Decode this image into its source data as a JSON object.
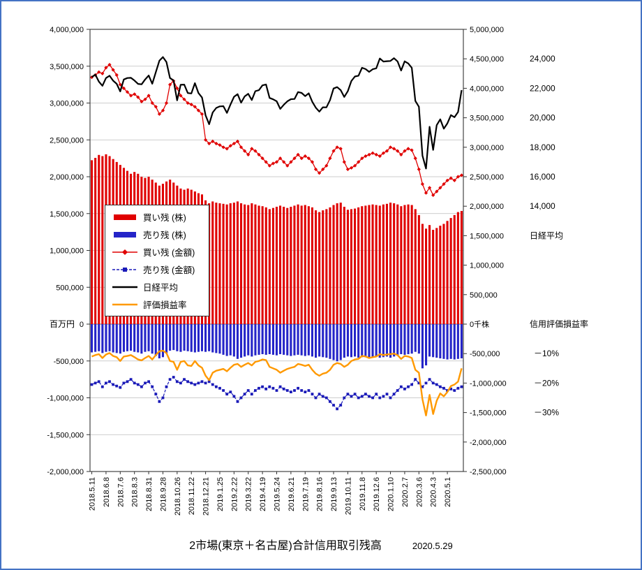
{
  "title": {
    "text": "2市場(東京＋名古屋)合計信用取引残高",
    "date": "2020.5.29"
  },
  "chart_data": {
    "type": "mixed (bar + line, dual axis)",
    "axes": {
      "left": {
        "unit_label": "百万円",
        "min": -2000000,
        "max": 4000000,
        "tick": 500000
      },
      "right": {
        "zero_label": "0千株",
        "min": -2500000,
        "max": 5000000,
        "tick": 500000
      },
      "nikkei": {
        "label": "日経平均",
        "tick_values": [
          24000,
          22000,
          20000,
          18000,
          16000,
          14000
        ]
      },
      "ratio": {
        "label": "信用評価損益率",
        "tick_values": [
          -10,
          -20,
          -30
        ],
        "tick_labels": [
          "－10%",
          "－20%",
          "－30%"
        ]
      }
    },
    "x_tick_labels": [
      "2018.5.11",
      "2018.6.8",
      "2018.7.6",
      "2018.8.3",
      "2018.8.31",
      "2018.9.28",
      "2018.10.26",
      "2018.11.22",
      "2018.12.21",
      "2019.1.25",
      "2019.2.22",
      "2019.3.22",
      "2019.4.19",
      "2019.5.24",
      "2019.6.21",
      "2019.7.19",
      "2019.8.16",
      "2019.9.13",
      "2019.10.11",
      "2019.11.8",
      "2019.12.6",
      "2020.1.10",
      "2020.2.7",
      "2020.3.6",
      "2020.4.3",
      "2020.5.1"
    ],
    "dates": [
      "2018.5.11",
      "2018.5.18",
      "2018.5.25",
      "2018.6.1",
      "2018.6.8",
      "2018.6.15",
      "2018.6.22",
      "2018.6.29",
      "2018.7.6",
      "2018.7.13",
      "2018.7.20",
      "2018.7.27",
      "2018.8.3",
      "2018.8.10",
      "2018.8.17",
      "2018.8.24",
      "2018.8.31",
      "2018.9.7",
      "2018.9.14",
      "2018.9.21",
      "2018.9.28",
      "2018.10.5",
      "2018.10.12",
      "2018.10.19",
      "2018.10.26",
      "2018.11.2",
      "2018.11.9",
      "2018.11.16",
      "2018.11.22",
      "2018.11.30",
      "2018.12.7",
      "2018.12.14",
      "2018.12.21",
      "2019.1.4",
      "2019.1.11",
      "2019.1.18",
      "2019.1.25",
      "2019.2.1",
      "2019.2.8",
      "2019.2.15",
      "2019.2.22",
      "2019.3.1",
      "2019.3.8",
      "2019.3.15",
      "2019.3.22",
      "2019.3.29",
      "2019.4.5",
      "2019.4.12",
      "2019.4.19",
      "2019.4.26",
      "2019.5.10",
      "2019.5.17",
      "2019.5.24",
      "2019.5.31",
      "2019.6.7",
      "2019.6.14",
      "2019.6.21",
      "2019.6.28",
      "2019.7.5",
      "2019.7.12",
      "2019.7.19",
      "2019.7.26",
      "2019.8.2",
      "2019.8.9",
      "2019.8.16",
      "2019.8.23",
      "2019.8.30",
      "2019.9.6",
      "2019.9.13",
      "2019.9.20",
      "2019.9.27",
      "2019.10.4",
      "2019.10.11",
      "2019.10.18",
      "2019.10.25",
      "2019.11.1",
      "2019.11.8",
      "2019.11.15",
      "2019.11.22",
      "2019.11.29",
      "2019.12.6",
      "2019.12.13",
      "2019.12.20",
      "2019.12.27",
      "2020.1.10",
      "2020.1.17",
      "2020.1.24",
      "2020.1.31",
      "2020.2.7",
      "2020.2.14",
      "2020.2.21",
      "2020.2.28",
      "2020.3.6",
      "2020.3.13",
      "2020.3.19",
      "2020.3.27",
      "2020.4.3",
      "2020.4.10",
      "2020.4.17",
      "2020.4.24",
      "2020.5.1",
      "2020.5.8",
      "2020.5.15",
      "2020.5.22",
      "2020.5.29"
    ],
    "series": [
      {
        "name": "買い残 (株)",
        "type": "bar",
        "axis": "right",
        "unit": "千株",
        "color": "#e00000",
        "values": [
          2780000,
          2820000,
          2870000,
          2850000,
          2880000,
          2850000,
          2800000,
          2750000,
          2700000,
          2650000,
          2600000,
          2550000,
          2580000,
          2550000,
          2500000,
          2480000,
          2500000,
          2450000,
          2400000,
          2350000,
          2380000,
          2420000,
          2450000,
          2400000,
          2350000,
          2300000,
          2280000,
          2300000,
          2280000,
          2250000,
          2220000,
          2200000,
          2100000,
          2050000,
          2080000,
          2060000,
          2050000,
          2040000,
          2030000,
          2050000,
          2060000,
          2080000,
          2050000,
          2030000,
          2020000,
          2050000,
          2030000,
          2010000,
          2000000,
          1980000,
          1950000,
          1970000,
          1990000,
          2010000,
          1990000,
          1970000,
          1990000,
          2010000,
          2030000,
          2010000,
          2020000,
          2000000,
          1980000,
          1930000,
          1900000,
          1930000,
          1950000,
          1980000,
          2020000,
          2050000,
          2060000,
          1990000,
          1940000,
          1950000,
          1960000,
          1980000,
          2000000,
          2010000,
          2020000,
          2030000,
          2020000,
          2010000,
          2030000,
          2040000,
          2060000,
          2050000,
          2030000,
          2000000,
          2020000,
          2030000,
          2020000,
          1950000,
          1850000,
          1700000,
          1620000,
          1680000,
          1600000,
          1630000,
          1670000,
          1700000,
          1750000,
          1800000,
          1850000,
          1900000,
          1920000
        ]
      },
      {
        "name": "売り残 (株)",
        "type": "bar",
        "axis": "right",
        "unit": "千株",
        "color": "#2424c8",
        "values": [
          -480000,
          -470000,
          -460000,
          -490000,
          -470000,
          -460000,
          -480000,
          -490000,
          -500000,
          -470000,
          -460000,
          -450000,
          -470000,
          -480000,
          -500000,
          -470000,
          -460000,
          -500000,
          -540000,
          -580000,
          -560000,
          -500000,
          -450000,
          -440000,
          -460000,
          -470000,
          -450000,
          -460000,
          -470000,
          -480000,
          -470000,
          -460000,
          -470000,
          -460000,
          -480000,
          -490000,
          -500000,
          -520000,
          -540000,
          -530000,
          -550000,
          -590000,
          -570000,
          -550000,
          -530000,
          -550000,
          -530000,
          -520000,
          -510000,
          -520000,
          -510000,
          -520000,
          -530000,
          -510000,
          -520000,
          -530000,
          -540000,
          -530000,
          -520000,
          -530000,
          -540000,
          -530000,
          -550000,
          -570000,
          -550000,
          -560000,
          -570000,
          -590000,
          -610000,
          -630000,
          -610000,
          -570000,
          -550000,
          -560000,
          -550000,
          -570000,
          -560000,
          -550000,
          -560000,
          -570000,
          -550000,
          -570000,
          -560000,
          -550000,
          -570000,
          -550000,
          -530000,
          -510000,
          -520000,
          -510000,
          -500000,
          -470000,
          -500000,
          -750000,
          -700000,
          -550000,
          -560000,
          -570000,
          -580000,
          -590000,
          -600000,
          -590000,
          -600000,
          -590000,
          -580000
        ]
      },
      {
        "name": "買い残 (金額)",
        "type": "line",
        "marker": "diamond",
        "axis": "left",
        "unit": "百万円",
        "color": "#e00000",
        "values": [
          3350000,
          3380000,
          3420000,
          3400000,
          3480000,
          3520000,
          3450000,
          3380000,
          3250000,
          3200000,
          3150000,
          3100000,
          3120000,
          3080000,
          3020000,
          3050000,
          3100000,
          3000000,
          2950000,
          2850000,
          2900000,
          3000000,
          3250000,
          3300000,
          3200000,
          3100000,
          3050000,
          3000000,
          2980000,
          2950000,
          2900000,
          2850000,
          2500000,
          2450000,
          2480000,
          2450000,
          2430000,
          2400000,
          2380000,
          2420000,
          2450000,
          2480000,
          2400000,
          2350000,
          2300000,
          2380000,
          2350000,
          2300000,
          2250000,
          2200000,
          2150000,
          2180000,
          2200000,
          2250000,
          2200000,
          2150000,
          2200000,
          2250000,
          2300000,
          2250000,
          2280000,
          2250000,
          2200000,
          2100000,
          2050000,
          2100000,
          2150000,
          2250000,
          2350000,
          2400000,
          2380000,
          2200000,
          2100000,
          2120000,
          2150000,
          2200000,
          2250000,
          2280000,
          2300000,
          2320000,
          2300000,
          2280000,
          2320000,
          2350000,
          2400000,
          2380000,
          2350000,
          2300000,
          2350000,
          2380000,
          2360000,
          2250000,
          2100000,
          1900000,
          1780000,
          1850000,
          1750000,
          1800000,
          1850000,
          1900000,
          1950000,
          1980000,
          1950000,
          2000000,
          2020000
        ]
      },
      {
        "name": "売り残 (金額)",
        "type": "line",
        "marker": "square",
        "dash": true,
        "axis": "left",
        "unit": "百万円",
        "color": "#1a1ab8",
        "values": [
          -820000,
          -800000,
          -780000,
          -850000,
          -800000,
          -780000,
          -820000,
          -840000,
          -860000,
          -800000,
          -780000,
          -750000,
          -800000,
          -820000,
          -850000,
          -800000,
          -780000,
          -850000,
          -950000,
          -1050000,
          -1000000,
          -850000,
          -750000,
          -720000,
          -780000,
          -800000,
          -750000,
          -780000,
          -800000,
          -820000,
          -800000,
          -780000,
          -800000,
          -780000,
          -820000,
          -850000,
          -870000,
          -900000,
          -950000,
          -920000,
          -980000,
          -1050000,
          -1000000,
          -950000,
          -900000,
          -950000,
          -900000,
          -870000,
          -850000,
          -880000,
          -850000,
          -870000,
          -900000,
          -850000,
          -880000,
          -900000,
          -920000,
          -900000,
          -870000,
          -900000,
          -920000,
          -900000,
          -950000,
          -1000000,
          -950000,
          -980000,
          -1000000,
          -1050000,
          -1100000,
          -1150000,
          -1100000,
          -1000000,
          -950000,
          -980000,
          -950000,
          -1000000,
          -980000,
          -950000,
          -980000,
          -1000000,
          -950000,
          -1000000,
          -980000,
          -950000,
          -1000000,
          -950000,
          -900000,
          -850000,
          -880000,
          -850000,
          -820000,
          -750000,
          -800000,
          -850000,
          -800000,
          -750000,
          -800000,
          -820000,
          -850000,
          -870000,
          -900000,
          -880000,
          -900000,
          -870000,
          -850000
        ]
      },
      {
        "name": "日経平均",
        "type": "line",
        "axis": "nikkei",
        "unit": "円",
        "color": "#000000",
        "values": [
          22758,
          22930,
          22451,
          22171,
          22695,
          22851,
          22517,
          22305,
          21788,
          22597,
          22698,
          22713,
          22525,
          22298,
          22270,
          22602,
          22865,
          22307,
          23095,
          23870,
          24120,
          23784,
          22695,
          22532,
          21185,
          22243,
          22250,
          21680,
          21647,
          22351,
          21679,
          21375,
          20166,
          19562,
          20360,
          20666,
          20774,
          20788,
          20333,
          20901,
          21426,
          21603,
          21026,
          21451,
          21627,
          21206,
          21808,
          21871,
          22201,
          22259,
          21345,
          21250,
          21117,
          20601,
          20884,
          21117,
          21259,
          21276,
          21746,
          21686,
          21467,
          21658,
          21087,
          20685,
          20419,
          20711,
          20704,
          21200,
          21988,
          22079,
          21878,
          21410,
          21799,
          22493,
          22800,
          22851,
          23392,
          23303,
          23113,
          23294,
          23354,
          24023,
          23817,
          23837,
          23851,
          24041,
          23827,
          23205,
          23828,
          23687,
          23387,
          21143,
          20750,
          17431,
          16553,
          19389,
          17820,
          19499,
          19897,
          19262,
          19619,
          20179,
          20037,
          20388,
          21877
        ]
      },
      {
        "name": "評価損益率",
        "type": "line",
        "axis": "ratio",
        "unit": "%",
        "color": "#ff9900",
        "values": [
          -11.0,
          -10.5,
          -10.2,
          -11.5,
          -10.3,
          -9.8,
          -10.8,
          -11.2,
          -12.5,
          -11.0,
          -10.8,
          -10.5,
          -11.2,
          -12.0,
          -12.3,
          -11.5,
          -10.8,
          -12.0,
          -10.5,
          -9.2,
          -9.0,
          -9.8,
          -12.5,
          -12.8,
          -15.5,
          -12.8,
          -12.5,
          -14.0,
          -14.2,
          -12.5,
          -14.0,
          -14.8,
          -17.5,
          -19.0,
          -16.5,
          -15.8,
          -15.5,
          -15.2,
          -16.0,
          -14.8,
          -13.8,
          -13.5,
          -14.5,
          -13.8,
          -13.2,
          -14.0,
          -12.8,
          -12.5,
          -12.0,
          -12.2,
          -14.5,
          -15.0,
          -15.5,
          -16.5,
          -15.8,
          -15.2,
          -14.8,
          -14.5,
          -13.5,
          -13.8,
          -14.2,
          -13.8,
          -15.5,
          -16.8,
          -17.5,
          -16.8,
          -16.5,
          -15.5,
          -13.8,
          -13.2,
          -13.5,
          -14.5,
          -13.8,
          -12.5,
          -12.0,
          -11.8,
          -10.8,
          -11.0,
          -11.5,
          -11.2,
          -11.0,
          -10.2,
          -10.5,
          -10.3,
          -10.2,
          -10.0,
          -10.5,
          -11.8,
          -10.8,
          -11.0,
          -11.5,
          -15.5,
          -16.5,
          -25.5,
          -31.0,
          -24.0,
          -30.5,
          -26.0,
          -23.5,
          -24.5,
          -23.0,
          -21.0,
          -20.5,
          -19.5,
          -15.0
        ]
      }
    ],
    "legend_position": "inside-left",
    "grid": true
  }
}
